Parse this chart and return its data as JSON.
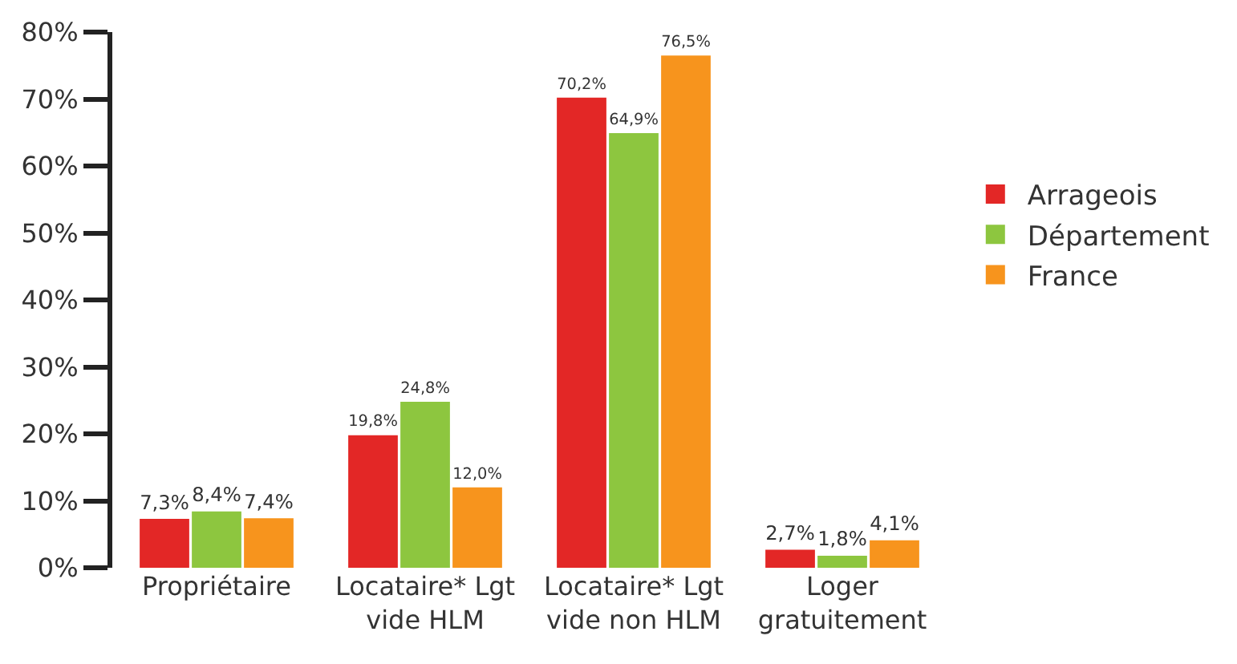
{
  "chart_data": {
    "type": "bar",
    "categories": [
      "Propriétaire",
      "Locataire* Lgt\nvide HLM",
      "Locataire* Lgt\nvide non HLM",
      "Loger\ngratuitement"
    ],
    "series": [
      {
        "name": "Arrageois",
        "color": "#e32726",
        "values": [
          7.3,
          19.8,
          70.2,
          2.7
        ],
        "value_labels": [
          "7,3%",
          "19,8%",
          "70,2%",
          "2,7%"
        ]
      },
      {
        "name": "Département",
        "color": "#8dc63f",
        "values": [
          8.4,
          24.8,
          64.9,
          1.8
        ],
        "value_labels": [
          "8,4%",
          "24,8%",
          "64,9%",
          "1,8%"
        ]
      },
      {
        "name": "France",
        "color": "#f7941d",
        "values": [
          7.4,
          12.0,
          76.5,
          4.1
        ],
        "value_labels": [
          "7,4%",
          "12,0%",
          "76,5%",
          "4,1%"
        ]
      }
    ],
    "ylim": [
      0,
      80
    ],
    "yticks": [
      {
        "value": 0,
        "label": "0%"
      },
      {
        "value": 10,
        "label": "10%"
      },
      {
        "value": 20,
        "label": "20%"
      },
      {
        "value": 30,
        "label": "30%"
      },
      {
        "value": 40,
        "label": "40%"
      },
      {
        "value": 50,
        "label": "50%"
      },
      {
        "value": 60,
        "label": "60%"
      },
      {
        "value": 70,
        "label": "70%"
      },
      {
        "value": 80,
        "label": "80%"
      }
    ],
    "grid": false,
    "legend": "right"
  }
}
